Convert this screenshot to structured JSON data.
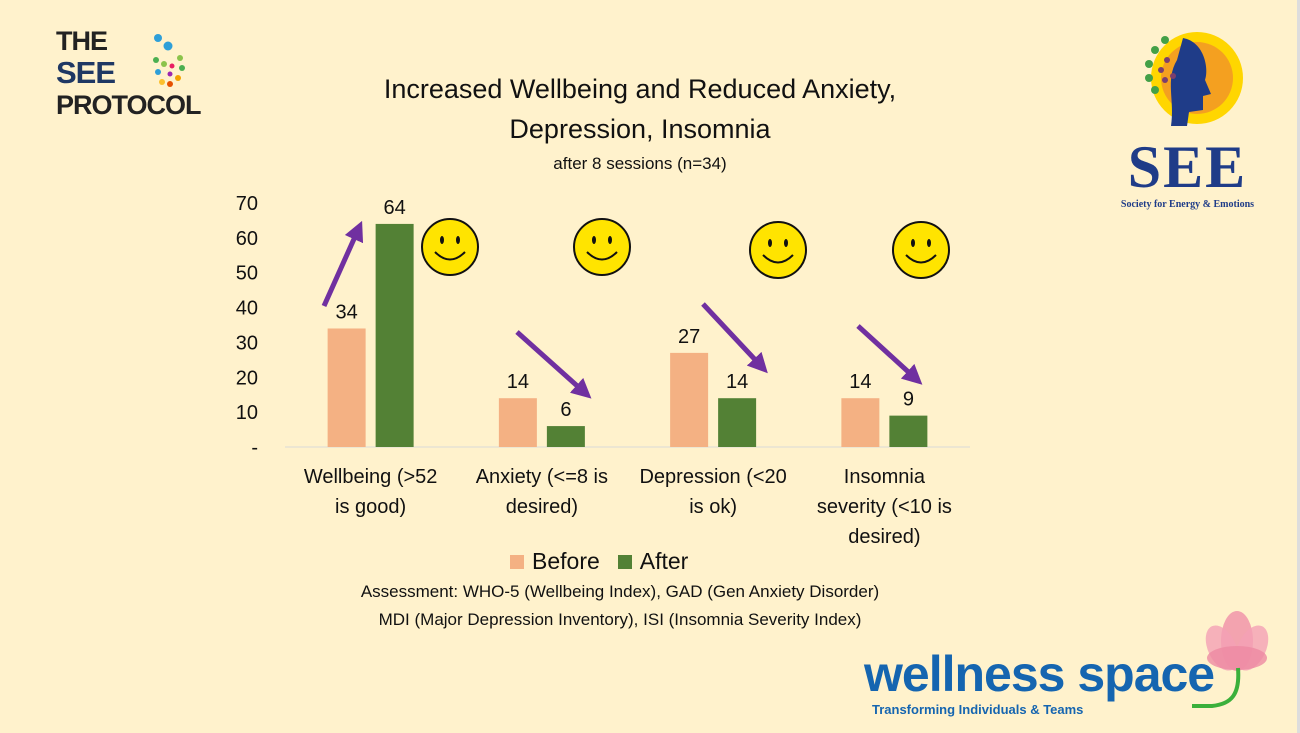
{
  "logos": {
    "see_protocol": {
      "line1": "THE",
      "line2": "SEE",
      "line3": "PROTOCOL"
    },
    "see_society": {
      "name": "SEE",
      "tagline": "Society for Energy & Emotions"
    },
    "wellness_space": {
      "name": "wellness space",
      "tagline": "Transforming Individuals & Teams"
    }
  },
  "footnote": {
    "line1": "Assessment: WHO-5 (Wellbeing Index), GAD (Gen Anxiety Disorder)",
    "line2": "MDI (Major Depression Inventory), ISI (Insomnia Severity Index)"
  },
  "chart_data": {
    "type": "bar",
    "title_line1": "Increased Wellbeing and Reduced Anxiety,",
    "title_line2": "Depression, Insomnia",
    "subtitle": "after 8 sessions (n=34)",
    "categories": [
      [
        "Wellbeing (>52",
        "is good)"
      ],
      [
        "Anxiety (<=8 is",
        "desired)"
      ],
      [
        "Depression (<20",
        "is ok)"
      ],
      [
        "Insomnia",
        "severity (<10 is",
        "desired)"
      ]
    ],
    "series": [
      {
        "name": "Before",
        "values": [
          34,
          14,
          27,
          14
        ],
        "color": "#F4B183"
      },
      {
        "name": "After",
        "values": [
          64,
          6,
          14,
          9
        ],
        "color": "#538135"
      }
    ],
    "ylim": [
      0,
      70
    ],
    "yticks": [
      "-",
      "10",
      "20",
      "30",
      "40",
      "50",
      "60",
      "70"
    ],
    "legend_position": "bottom",
    "grid": false,
    "annotations": {
      "arrow_color": "#7030A0",
      "arrows": [
        "up",
        "down",
        "down",
        "down"
      ],
      "icon": "smiley-face"
    }
  }
}
